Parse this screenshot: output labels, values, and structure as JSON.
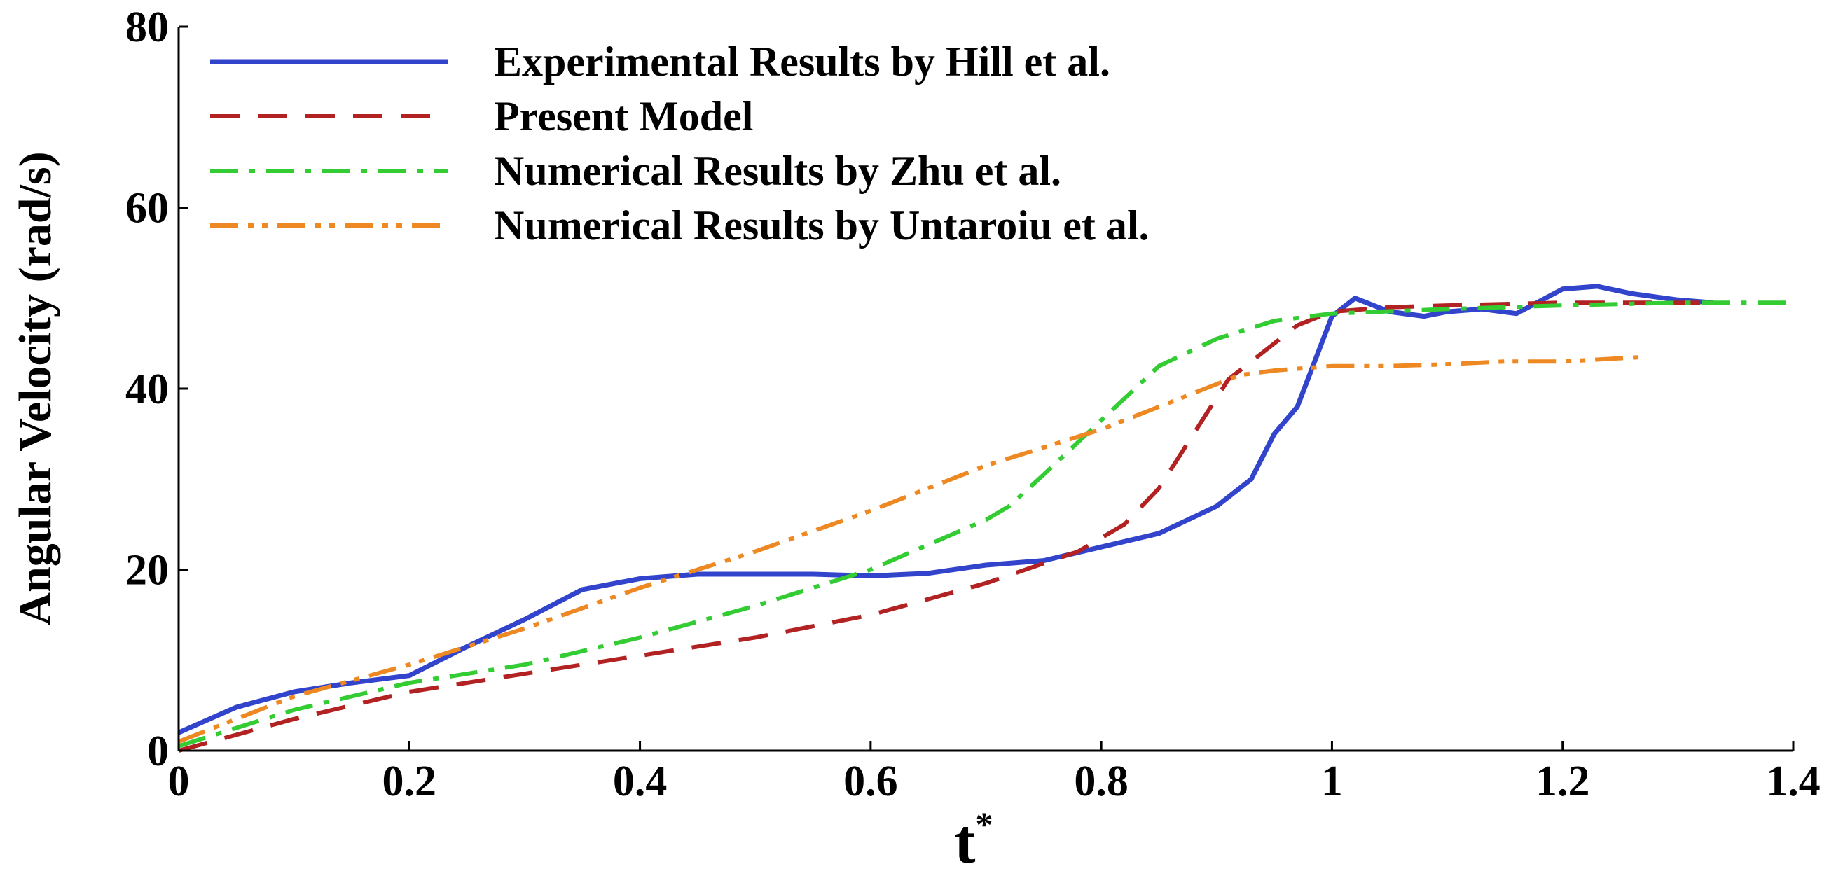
{
  "chart_data": {
    "type": "line",
    "xlabel": "t",
    "xlabel_superscript": "*",
    "ylabel": "Angular Velocity (rad/s)",
    "xlim": [
      0,
      1.4
    ],
    "ylim": [
      0,
      80
    ],
    "xticks": [
      "0",
      "0.2",
      "0.4",
      "0.6",
      "0.8",
      "1",
      "1.2",
      "1.4"
    ],
    "yticks": [
      "0",
      "20",
      "40",
      "60",
      "80"
    ],
    "grid": false,
    "legend_position": "top-left",
    "series": [
      {
        "name": "Experimental Results by Hill et al.",
        "color": "#3344cc",
        "dash": "solid",
        "x": [
          0,
          0.05,
          0.1,
          0.15,
          0.2,
          0.25,
          0.3,
          0.35,
          0.4,
          0.45,
          0.5,
          0.55,
          0.6,
          0.65,
          0.7,
          0.75,
          0.8,
          0.85,
          0.9,
          0.93,
          0.95,
          0.97,
          1.0,
          1.02,
          1.05,
          1.08,
          1.1,
          1.13,
          1.16,
          1.2,
          1.23,
          1.26,
          1.3,
          1.33
        ],
        "y": [
          2,
          4.8,
          6.5,
          7.5,
          8.3,
          11.5,
          14.5,
          17.8,
          19,
          19.5,
          19.5,
          19.5,
          19.3,
          19.6,
          20.5,
          21,
          22.5,
          24,
          27,
          30,
          35,
          38,
          48,
          50,
          48.5,
          48,
          48.5,
          48.8,
          48.3,
          51,
          51.3,
          50.5,
          49.8,
          49.5
        ]
      },
      {
        "name": "Present Model",
        "color": "#b22222",
        "dash": "dashed",
        "x": [
          0,
          0.1,
          0.2,
          0.3,
          0.4,
          0.5,
          0.6,
          0.7,
          0.78,
          0.82,
          0.85,
          0.88,
          0.91,
          0.94,
          0.97,
          1.0,
          1.05,
          1.1,
          1.2,
          1.33
        ],
        "y": [
          0,
          3.5,
          6.5,
          8.5,
          10.5,
          12.5,
          15,
          18.5,
          22,
          25,
          29,
          35,
          41,
          44,
          47,
          48.5,
          49,
          49.2,
          49.5,
          49.5
        ]
      },
      {
        "name": "Numerical Results by Zhu et al.",
        "color": "#33cc33",
        "dash": "dashdot",
        "x": [
          0,
          0.1,
          0.2,
          0.3,
          0.4,
          0.5,
          0.6,
          0.7,
          0.72,
          0.75,
          0.8,
          0.85,
          0.9,
          0.95,
          1.0,
          1.1,
          1.2,
          1.3,
          1.4
        ],
        "y": [
          0.5,
          4.5,
          7.5,
          9.5,
          12.5,
          16,
          20,
          25.5,
          27,
          30.5,
          36.5,
          42.5,
          45.5,
          47.5,
          48.3,
          48.8,
          49.2,
          49.5,
          49.5
        ]
      },
      {
        "name": "Numerical Results by Untaroiu et al.",
        "color": "#ee8822",
        "dash": "dashdotdot",
        "x": [
          0,
          0.1,
          0.2,
          0.3,
          0.4,
          0.5,
          0.6,
          0.7,
          0.8,
          0.85,
          0.9,
          0.92,
          0.95,
          1.0,
          1.05,
          1.1,
          1.15,
          1.2,
          1.27
        ],
        "y": [
          1,
          6,
          9.5,
          13.5,
          18,
          22,
          26.5,
          31.5,
          35.5,
          38,
          40.5,
          41.5,
          42,
          42.5,
          42.5,
          42.7,
          43,
          43,
          43.5
        ]
      }
    ]
  }
}
